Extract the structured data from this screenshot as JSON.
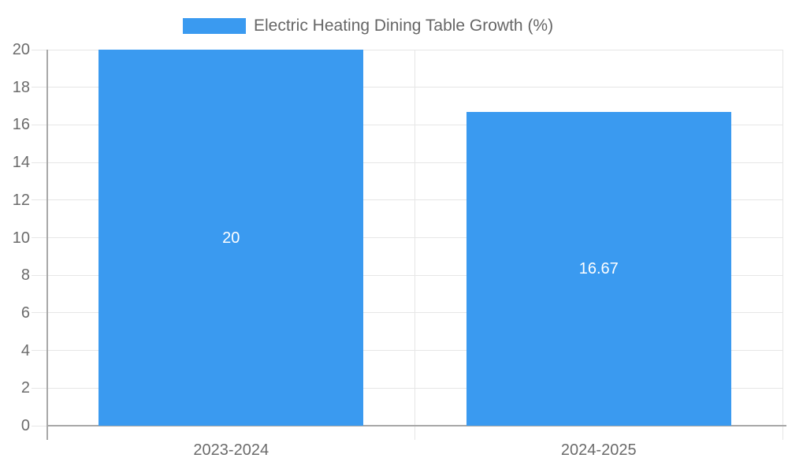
{
  "chart_data": {
    "type": "bar",
    "title": "Electric Heating Dining Table Growth (%)",
    "categories": [
      "2023-2024",
      "2024-2025"
    ],
    "values": [
      20,
      16.67
    ],
    "value_labels": [
      "20",
      "16.67"
    ],
    "ylim": [
      0,
      20
    ],
    "yticks": [
      0,
      2,
      4,
      6,
      8,
      10,
      12,
      14,
      16,
      18,
      20
    ],
    "xlabel": "",
    "ylabel": "",
    "grid": true,
    "legend_position": "top",
    "legend": {
      "label": "Electric Heating Dining Table Growth (%)",
      "swatch_color": "#3a9af0"
    },
    "colors": {
      "bar": "#3a9af0",
      "bar_value_label": "#ffffff",
      "axis_text": "#6b6b6b",
      "legend_text": "#666666",
      "gridline": "#e6e6e6",
      "axis_line": "#a8a8a8",
      "background": "#ffffff"
    }
  }
}
